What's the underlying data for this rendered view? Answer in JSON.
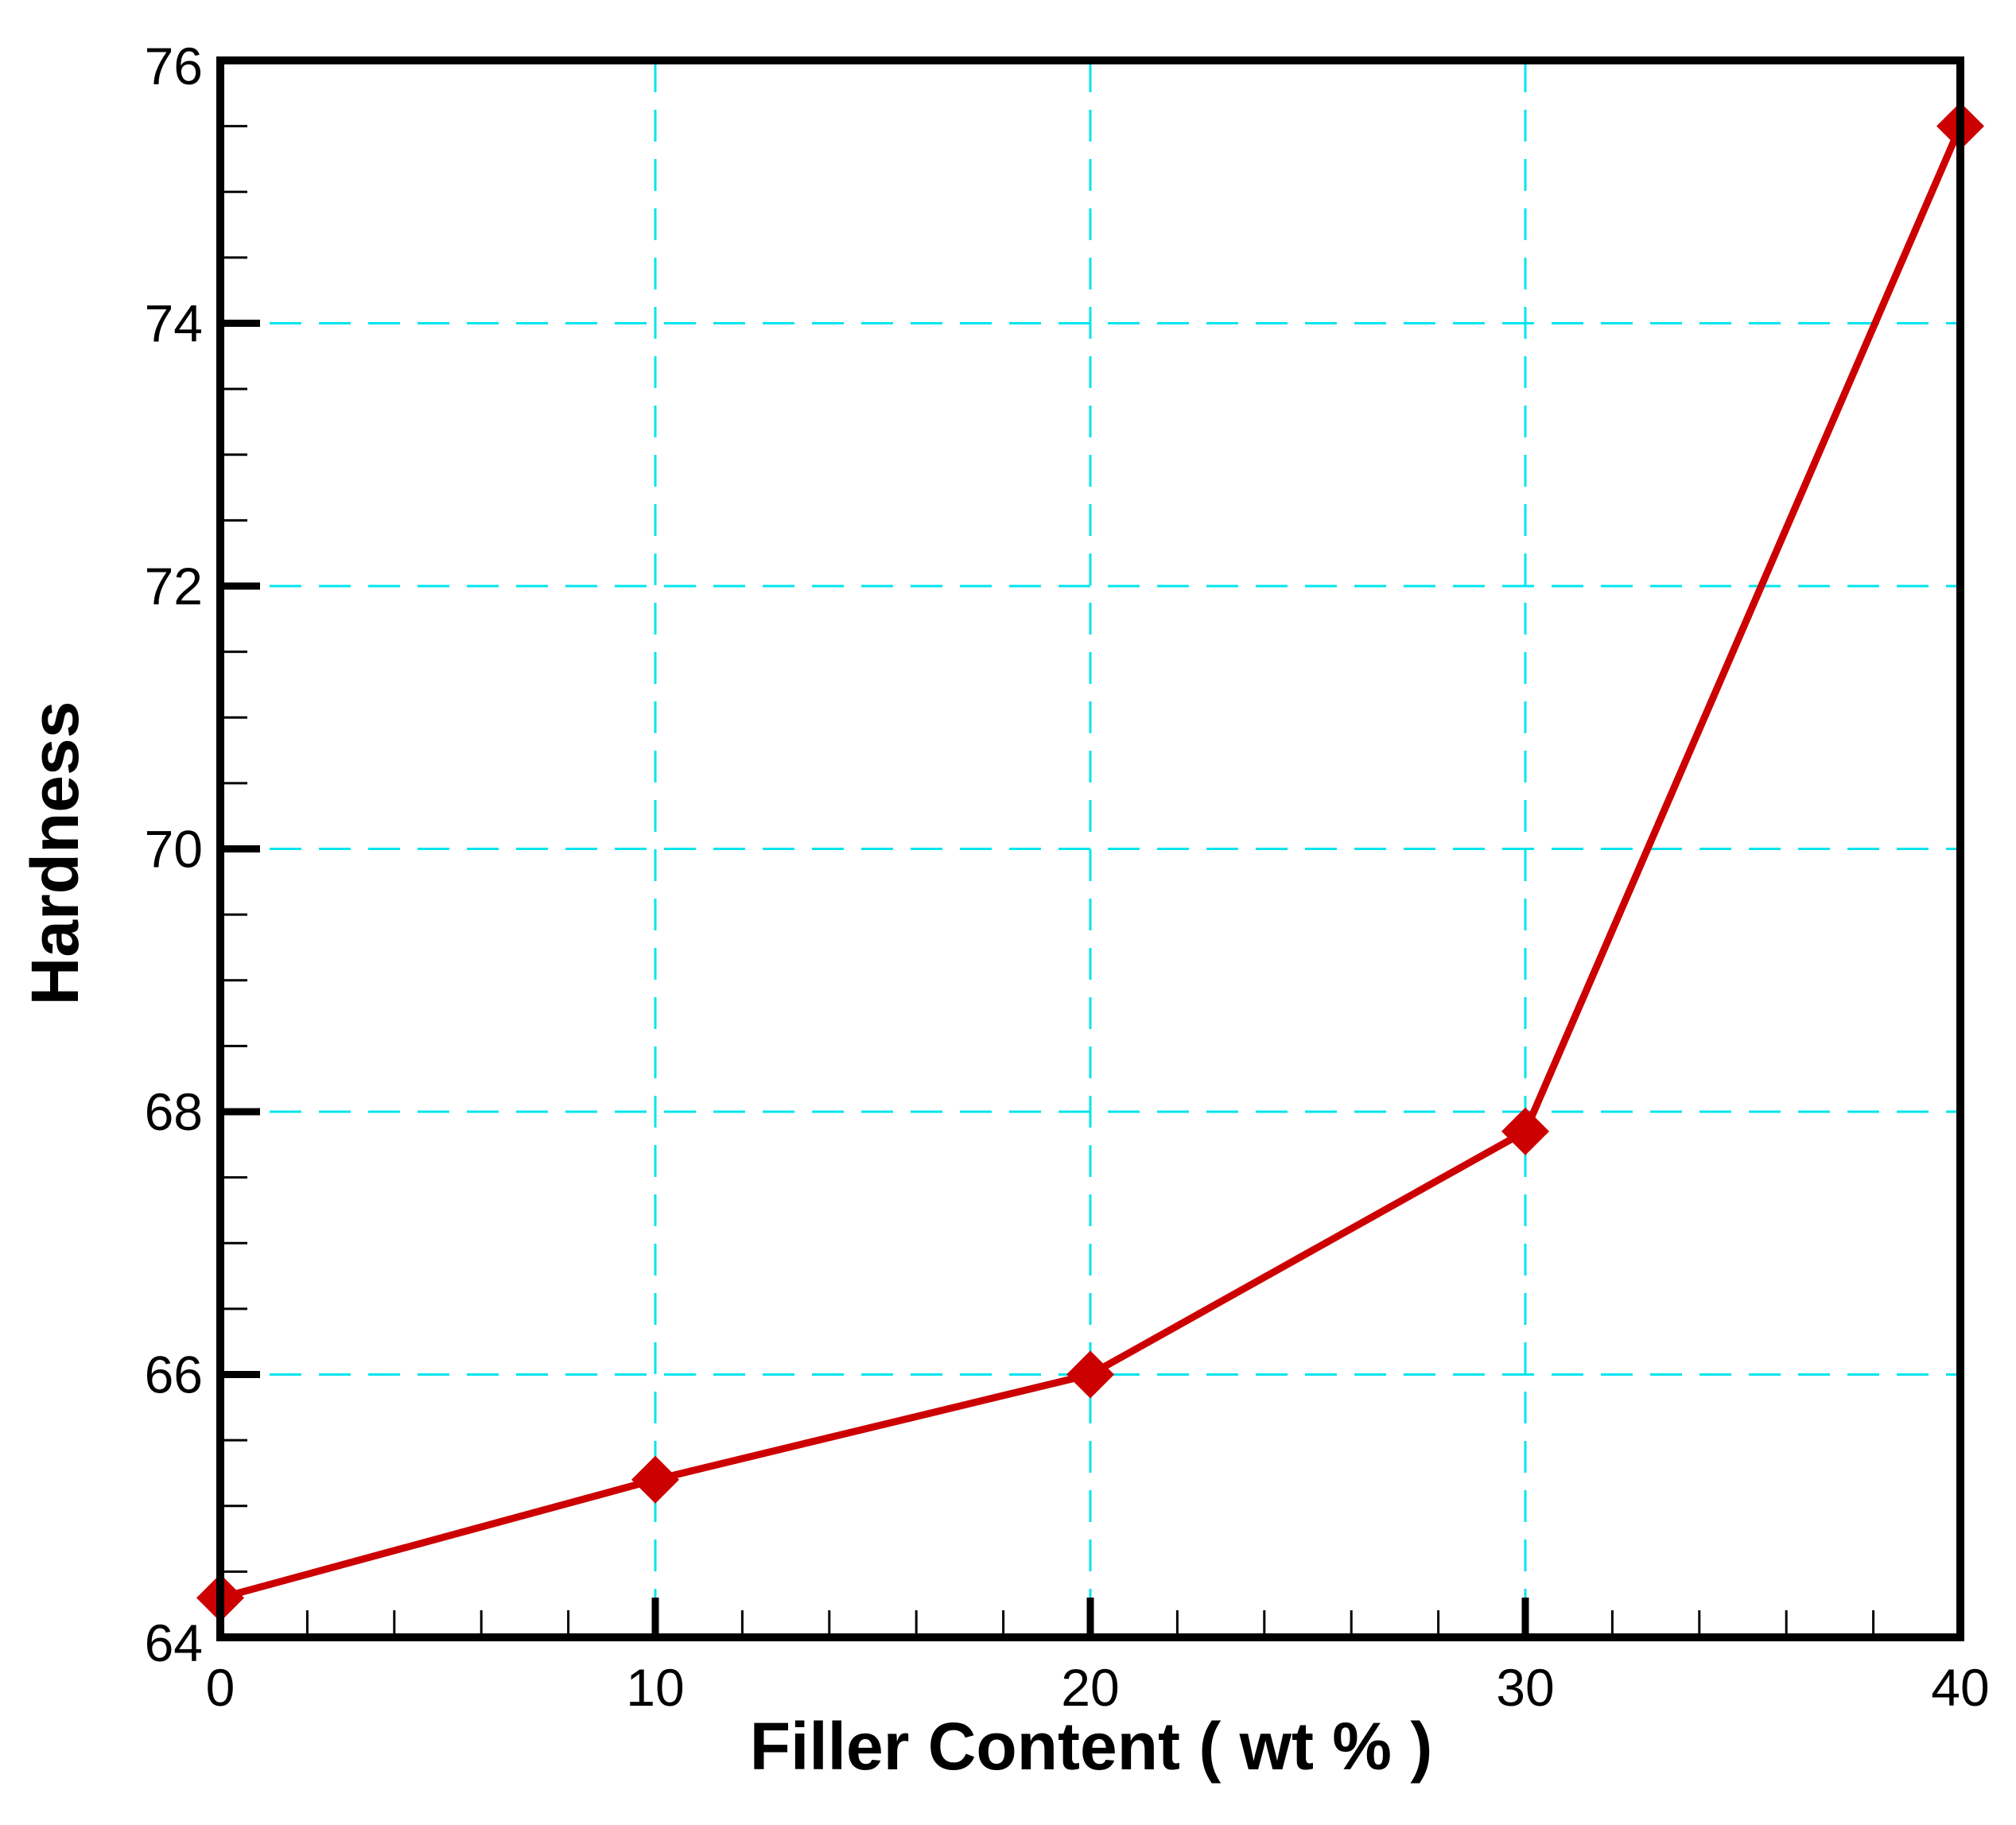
{
  "chart_data": {
    "type": "line",
    "title": "",
    "xlabel": "Filler Content ( wt % )",
    "ylabel": "Hardness",
    "xlim": [
      0,
      40
    ],
    "ylim": [
      64,
      76
    ],
    "x_ticks": [
      0,
      10,
      20,
      30,
      40
    ],
    "x_tick_labels": [
      "0",
      "10",
      "20",
      "30",
      "40"
    ],
    "y_ticks": [
      64,
      66,
      68,
      70,
      72,
      74,
      76
    ],
    "y_tick_labels": [
      "64",
      "66",
      "68",
      "70",
      "72",
      "74",
      "76"
    ],
    "grid": true,
    "grid_style": "dashed",
    "legend": "none",
    "series": [
      {
        "x": [
          0,
          10,
          20,
          30,
          40
        ],
        "y": [
          64.3,
          65.2,
          66.0,
          67.85,
          75.5
        ],
        "marker": "diamond"
      }
    ]
  },
  "colors": {
    "series_line": "#cc0000",
    "grid": "#00e5ee",
    "axes": "#000000",
    "background": "#ffffff"
  }
}
